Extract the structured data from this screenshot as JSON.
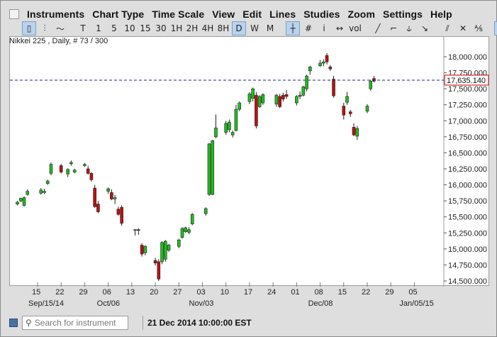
{
  "menubar": {
    "items": [
      "Instruments",
      "Chart Type",
      "Time Scale",
      "View",
      "Edit",
      "Lines",
      "Studies",
      "Zoom",
      "Settings",
      "Help"
    ]
  },
  "toolbar": {
    "buttons": [
      {
        "name": "candles-type-button",
        "label": "▯",
        "active": true
      },
      {
        "name": "bars-type-button",
        "label": "⫶"
      },
      {
        "name": "line-type-button",
        "label": "〜"
      },
      {
        "name": "sep"
      },
      {
        "name": "tick-scale-button",
        "label": "T"
      },
      {
        "name": "1-min-button",
        "label": "1"
      },
      {
        "name": "5-min-button",
        "label": "5"
      },
      {
        "name": "10-min-button",
        "label": "10"
      },
      {
        "name": "15-min-button",
        "label": "15"
      },
      {
        "name": "30-min-button",
        "label": "30"
      },
      {
        "name": "1h-button",
        "label": "1H"
      },
      {
        "name": "2h-button",
        "label": "2H"
      },
      {
        "name": "4h-button",
        "label": "4H"
      },
      {
        "name": "8h-button",
        "label": "8H"
      },
      {
        "name": "daily-button",
        "label": "D",
        "active": true
      },
      {
        "name": "weekly-button",
        "label": "W"
      },
      {
        "name": "monthly-button",
        "label": "M"
      },
      {
        "name": "sep"
      },
      {
        "name": "crosshair-button",
        "label": "┼",
        "active": true
      },
      {
        "name": "grid-button",
        "label": "#"
      },
      {
        "name": "info-button",
        "label": "i"
      },
      {
        "name": "scroll-button",
        "label": "↔"
      },
      {
        "name": "volume-button",
        "label": "vol"
      },
      {
        "name": "sep"
      },
      {
        "name": "line-tool-button",
        "label": "╱"
      },
      {
        "name": "ray-tool-button",
        "label": "⌐"
      },
      {
        "name": "channel-tool-button",
        "label": "⫝"
      },
      {
        "name": "arrow-tool-button",
        "label": "↘"
      },
      {
        "name": "sep"
      },
      {
        "name": "hide-lines-button",
        "label": "⫽"
      },
      {
        "name": "delete-line-button",
        "label": "✕"
      },
      {
        "name": "delete-all-button",
        "label": "⅍"
      },
      {
        "name": "sep"
      },
      {
        "name": "pin-button",
        "label": "⊡",
        "active": true
      },
      {
        "name": "more-button",
        "label": "»"
      }
    ]
  },
  "chart_info": "Nikkei 225 , Daily, # 73 / 300",
  "current_price": "17,635.140",
  "status": {
    "search_placeholder": "Search for instrument",
    "datetime": "21 Dec 2014 10:00:00 EST"
  },
  "colors": {
    "up": "#22bb22",
    "down": "#bb1111",
    "price_line": "#1a237e",
    "price_tag_border": "#cc0000"
  },
  "chart_data": {
    "type": "candlestick",
    "ylim": [
      14400,
      18100
    ],
    "yticks": [
      14500,
      14750,
      15000,
      15250,
      15500,
      15750,
      16000,
      16250,
      16500,
      16750,
      17000,
      17250,
      17500,
      17750,
      18000
    ],
    "ytick_labels": [
      "14,500.000",
      "14,750.000",
      "15,000.000",
      "15,250.000",
      "15,500.000",
      "15,750.000",
      "16,000.000",
      "16,250.000",
      "16,500.000",
      "16,750.000",
      "17,000.000",
      "17,250.000",
      "17,500.000",
      "17,750.000",
      "18,000.000"
    ],
    "xtick_labels": [
      "15",
      "22",
      "29",
      "06",
      "13",
      "20",
      "27",
      "03",
      "10",
      "17",
      "24",
      "01",
      "08",
      "15",
      "22",
      "29",
      "05"
    ],
    "xtick_months": [
      "Sep/15/14",
      "Oct/06",
      "Nov/03",
      "Dec/08",
      "Jan/05/15"
    ],
    "current_price": 17635.14,
    "candles": [
      {
        "date": "2014-09-09",
        "o": 15700,
        "h": 15750,
        "l": 15680,
        "c": 15730
      },
      {
        "date": "2014-09-10",
        "o": 15750,
        "h": 15800,
        "l": 15730,
        "c": 15790
      },
      {
        "date": "2014-09-11",
        "o": 15680,
        "h": 15820,
        "l": 15660,
        "c": 15800
      },
      {
        "date": "2014-09-12",
        "o": 15850,
        "h": 15930,
        "l": 15830,
        "c": 15900
      },
      {
        "date": "2014-09-16",
        "o": 15870,
        "h": 15950,
        "l": 15850,
        "c": 15920
      },
      {
        "date": "2014-09-17",
        "o": 15880,
        "h": 15940,
        "l": 15860,
        "c": 15900
      },
      {
        "date": "2014-09-18",
        "o": 16020,
        "h": 16080,
        "l": 16000,
        "c": 16060
      },
      {
        "date": "2014-09-19",
        "o": 16180,
        "h": 16350,
        "l": 16150,
        "c": 16320
      },
      {
        "date": "2014-09-22",
        "o": 16300,
        "h": 16330,
        "l": 16180,
        "c": 16200
      },
      {
        "date": "2014-09-24",
        "o": 16170,
        "h": 16260,
        "l": 16120,
        "c": 16240
      },
      {
        "date": "2014-09-25",
        "o": 16330,
        "h": 16380,
        "l": 16300,
        "c": 16350
      },
      {
        "date": "2014-09-26",
        "o": 16200,
        "h": 16250,
        "l": 16180,
        "c": 16230
      },
      {
        "date": "2014-09-29",
        "o": 16300,
        "h": 16340,
        "l": 16280,
        "c": 16320
      },
      {
        "date": "2014-09-30",
        "o": 16250,
        "h": 16300,
        "l": 16160,
        "c": 16180
      },
      {
        "date": "2014-10-01",
        "o": 16180,
        "h": 16200,
        "l": 16050,
        "c": 16080
      },
      {
        "date": "2014-10-02",
        "o": 15950,
        "h": 16000,
        "l": 15640,
        "c": 15660
      },
      {
        "date": "2014-10-03",
        "o": 15700,
        "h": 15750,
        "l": 15560,
        "c": 15580
      },
      {
        "date": "2014-10-06",
        "o": 15900,
        "h": 15960,
        "l": 15860,
        "c": 15940
      },
      {
        "date": "2014-10-07",
        "o": 15880,
        "h": 15930,
        "l": 15760,
        "c": 15780
      },
      {
        "date": "2014-10-08",
        "o": 15780,
        "h": 15840,
        "l": 15700,
        "c": 15800
      },
      {
        "date": "2014-10-09",
        "o": 15620,
        "h": 15660,
        "l": 15520,
        "c": 15540
      },
      {
        "date": "2014-10-10",
        "o": 15650,
        "h": 15680,
        "l": 15360,
        "c": 15400
      },
      {
        "date": "2014-10-14",
        "o": 15290,
        "h": 15310,
        "l": 15210,
        "c": 15300
      },
      {
        "date": "2014-10-15",
        "o": 15300,
        "h": 15320,
        "l": 15220,
        "c": 15290
      },
      {
        "date": "2014-10-16",
        "o": 15060,
        "h": 15090,
        "l": 14880,
        "c": 14920
      },
      {
        "date": "2014-10-17",
        "o": 14940,
        "h": 15060,
        "l": 14900,
        "c": 15040
      },
      {
        "date": "2014-10-20",
        "o": 14820,
        "h": 14860,
        "l": 14740,
        "c": 14780
      },
      {
        "date": "2014-10-21",
        "o": 14800,
        "h": 14840,
        "l": 14500,
        "c": 14530
      },
      {
        "date": "2014-10-22",
        "o": 14800,
        "h": 15120,
        "l": 14760,
        "c": 15100
      },
      {
        "date": "2014-10-23",
        "o": 14840,
        "h": 15140,
        "l": 14800,
        "c": 15120
      },
      {
        "date": "2014-10-24",
        "o": 14980,
        "h": 15080,
        "l": 14950,
        "c": 15060
      },
      {
        "date": "2014-10-27",
        "o": 15040,
        "h": 15160,
        "l": 15010,
        "c": 15140
      },
      {
        "date": "2014-10-28",
        "o": 15180,
        "h": 15340,
        "l": 15160,
        "c": 15320
      },
      {
        "date": "2014-10-29",
        "o": 15270,
        "h": 15350,
        "l": 15250,
        "c": 15330
      },
      {
        "date": "2014-10-30",
        "o": 15260,
        "h": 15340,
        "l": 15230,
        "c": 15300
      },
      {
        "date": "2014-10-31",
        "o": 15390,
        "h": 15560,
        "l": 15370,
        "c": 15540
      },
      {
        "date": "2014-11-04",
        "o": 15550,
        "h": 15650,
        "l": 15520,
        "c": 15630
      },
      {
        "date": "2014-11-05",
        "o": 15850,
        "h": 16650,
        "l": 15830,
        "c": 16640
      },
      {
        "date": "2014-11-06",
        "o": 15850,
        "h": 16700,
        "l": 15840,
        "c": 16690
      },
      {
        "date": "2014-11-07",
        "o": 16750,
        "h": 17100,
        "l": 16730,
        "c": 16890
      },
      {
        "date": "2014-11-10",
        "o": 16820,
        "h": 17000,
        "l": 16780,
        "c": 16960
      },
      {
        "date": "2014-11-11",
        "o": 16860,
        "h": 17020,
        "l": 16820,
        "c": 16980
      },
      {
        "date": "2014-11-12",
        "o": 16780,
        "h": 16850,
        "l": 16740,
        "c": 16820
      },
      {
        "date": "2014-11-13",
        "o": 16850,
        "h": 17250,
        "l": 16830,
        "c": 17180
      },
      {
        "date": "2014-11-14",
        "o": 17180,
        "h": 17300,
        "l": 17150,
        "c": 17280
      },
      {
        "date": "2014-11-17",
        "o": 17300,
        "h": 17450,
        "l": 17260,
        "c": 17420
      },
      {
        "date": "2014-11-18",
        "o": 17350,
        "h": 17520,
        "l": 17300,
        "c": 17500
      },
      {
        "date": "2014-11-19",
        "o": 17400,
        "h": 17450,
        "l": 16880,
        "c": 16920
      },
      {
        "date": "2014-11-20",
        "o": 17220,
        "h": 17400,
        "l": 17200,
        "c": 17380
      },
      {
        "date": "2014-11-21",
        "o": 17280,
        "h": 17430,
        "l": 17250,
        "c": 17410
      },
      {
        "date": "2014-11-25",
        "o": 17260,
        "h": 17420,
        "l": 17220,
        "c": 17400
      },
      {
        "date": "2014-11-26",
        "o": 17380,
        "h": 17420,
        "l": 17200,
        "c": 17220
      },
      {
        "date": "2014-11-27",
        "o": 17400,
        "h": 17440,
        "l": 17300,
        "c": 17340
      },
      {
        "date": "2014-11-28",
        "o": 17410,
        "h": 17480,
        "l": 17340,
        "c": 17380
      },
      {
        "date": "2014-12-01",
        "o": 17280,
        "h": 17400,
        "l": 17240,
        "c": 17380
      },
      {
        "date": "2014-12-02",
        "o": 17380,
        "h": 17460,
        "l": 17340,
        "c": 17400
      },
      {
        "date": "2014-12-03",
        "o": 17400,
        "h": 17550,
        "l": 17380,
        "c": 17530
      },
      {
        "date": "2014-12-04",
        "o": 17500,
        "h": 17720,
        "l": 17460,
        "c": 17700
      },
      {
        "date": "2014-12-05",
        "o": 17780,
        "h": 17860,
        "l": 17720,
        "c": 17840
      },
      {
        "date": "2014-12-08",
        "o": 17860,
        "h": 17950,
        "l": 17840,
        "c": 17900
      },
      {
        "date": "2014-12-09",
        "o": 17900,
        "h": 17960,
        "l": 17850,
        "c": 17920
      },
      {
        "date": "2014-12-10",
        "o": 18020,
        "h": 18060,
        "l": 17880,
        "c": 17920
      },
      {
        "date": "2014-12-11",
        "o": 17840,
        "h": 17870,
        "l": 17780,
        "c": 17810
      },
      {
        "date": "2014-12-12",
        "o": 17650,
        "h": 17700,
        "l": 17360,
        "c": 17390
      },
      {
        "date": "2014-12-15",
        "o": 17230,
        "h": 17280,
        "l": 17020,
        "c": 17090
      },
      {
        "date": "2014-12-16",
        "o": 17290,
        "h": 17450,
        "l": 17250,
        "c": 17380
      },
      {
        "date": "2014-12-17",
        "o": 17140,
        "h": 17170,
        "l": 17060,
        "c": 17110
      },
      {
        "date": "2014-12-18",
        "o": 16900,
        "h": 16960,
        "l": 16760,
        "c": 16780
      },
      {
        "date": "2014-12-19",
        "o": 16760,
        "h": 16920,
        "l": 16700,
        "c": 16880
      },
      {
        "date": "2014-12-22",
        "o": 17150,
        "h": 17260,
        "l": 17120,
        "c": 17230
      },
      {
        "date": "2014-12-23",
        "o": 17500,
        "h": 17640,
        "l": 17470,
        "c": 17620
      },
      {
        "date": "2014-12-24",
        "o": 17660,
        "h": 17700,
        "l": 17600,
        "c": 17620
      }
    ]
  }
}
